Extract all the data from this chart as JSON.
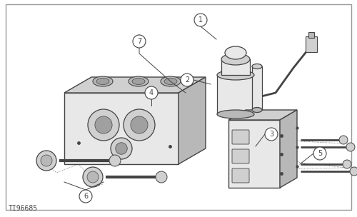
{
  "bg": "#ffffff",
  "lc": "#444444",
  "fc_light": "#e8e8e8",
  "fc_mid": "#d0d0d0",
  "fc_dark": "#b8b8b8",
  "fc_darker": "#a0a0a0",
  "title": "TI96685",
  "fig_w": 5.0,
  "fig_h": 3.04,
  "dpi": 100
}
